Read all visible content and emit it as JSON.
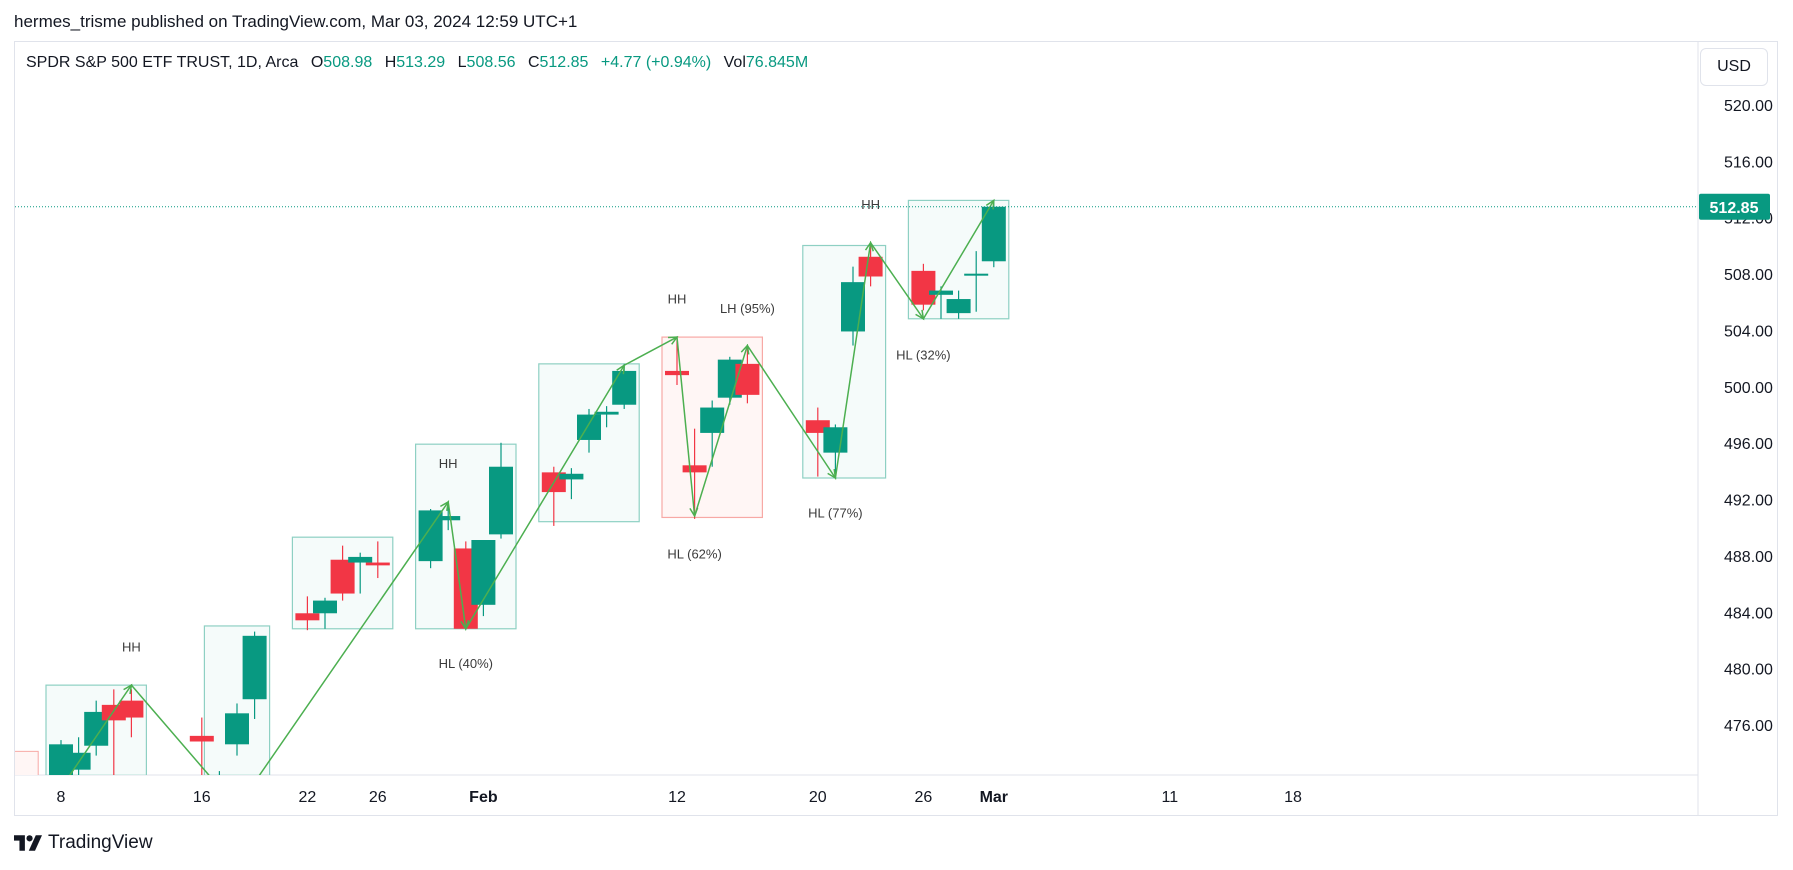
{
  "header": {
    "published_line": "hermes_trisme published on TradingView.com, Mar 03, 2024 12:59 UTC+1"
  },
  "legend": {
    "symbol": "SPDR S&P 500 ETF TRUST, 1D, Arca",
    "open_label": "O",
    "open": "508.98",
    "high_label": "H",
    "high": "513.29",
    "low_label": "L",
    "low": "508.56",
    "close_label": "C",
    "close": "512.85",
    "change": "+4.77 (+0.94%)",
    "vol_label": "Vol",
    "vol": "76.845M"
  },
  "currency_button": "USD",
  "footer": {
    "brand": "TradingView"
  },
  "colors": {
    "up": "#089981",
    "down": "#f23645",
    "zigzag": "#4caf50",
    "box_green_stroke": "#8ed0c3",
    "box_green_fill": "#f5fbfa",
    "box_red_stroke": "#f7a9a5",
    "box_red_fill": "#fff6f5",
    "price_line": "#089981",
    "grid_text": "#131722"
  },
  "chart_data": {
    "type": "candlestick",
    "title": "SPDR S&P 500 ETF TRUST, 1D, Arca",
    "y_axis": {
      "ticks": [
        476,
        480,
        484,
        488,
        492,
        496,
        500,
        504,
        508,
        512,
        516,
        520
      ],
      "tick_labels": [
        "476.00",
        "480.00",
        "484.00",
        "488.00",
        "492.00",
        "496.00",
        "500.00",
        "504.00",
        "508.00",
        "512.00",
        "516.00",
        "520.00"
      ],
      "range": [
        472.8,
        523.5
      ]
    },
    "x_axis": {
      "labels": [
        {
          "text": "8",
          "date": "2024-01-08"
        },
        {
          "text": "16",
          "date": "2024-01-16"
        },
        {
          "text": "22",
          "date": "2024-01-22"
        },
        {
          "text": "26",
          "date": "2024-01-26"
        },
        {
          "text": "Feb",
          "date": "2024-02-01",
          "bold": true
        },
        {
          "text": "12",
          "date": "2024-02-12"
        },
        {
          "text": "20",
          "date": "2024-02-20"
        },
        {
          "text": "26",
          "date": "2024-02-26"
        },
        {
          "text": "Mar",
          "date": "2024-03-01",
          "bold": true
        },
        {
          "text": "11",
          "date": "2024-03-11"
        },
        {
          "text": "18",
          "date": "2024-03-18"
        }
      ]
    },
    "candles": [
      {
        "date": "2024-01-08",
        "o": 472.5,
        "h": 475.0,
        "l": 472.0,
        "c": 474.7
      },
      {
        "date": "2024-01-09",
        "o": 472.9,
        "h": 475.2,
        "l": 471.9,
        "c": 474.1
      },
      {
        "date": "2024-01-10",
        "o": 474.6,
        "h": 477.8,
        "l": 473.9,
        "c": 477.0
      },
      {
        "date": "2024-01-11",
        "o": 477.5,
        "h": 478.6,
        "l": 472.3,
        "c": 476.4
      },
      {
        "date": "2024-01-12",
        "o": 477.8,
        "h": 478.6,
        "l": 475.2,
        "c": 476.6
      },
      {
        "date": "2024-01-16",
        "o": 475.3,
        "h": 476.6,
        "l": 472.2,
        "c": 474.9
      },
      {
        "date": "2024-01-17",
        "o": 471.8,
        "h": 472.8,
        "l": 469.9,
        "c": 472.3
      },
      {
        "date": "2024-01-18",
        "o": 474.7,
        "h": 477.6,
        "l": 473.9,
        "c": 476.9
      },
      {
        "date": "2024-01-19",
        "o": 477.9,
        "h": 482.7,
        "l": 476.5,
        "c": 482.4
      },
      {
        "date": "2024-01-22",
        "o": 484.0,
        "h": 485.2,
        "l": 482.8,
        "c": 483.5
      },
      {
        "date": "2024-01-23",
        "o": 484.0,
        "h": 485.1,
        "l": 482.9,
        "c": 484.9
      },
      {
        "date": "2024-01-24",
        "o": 487.8,
        "h": 488.8,
        "l": 484.9,
        "c": 485.4
      },
      {
        "date": "2024-01-25",
        "o": 487.6,
        "h": 488.3,
        "l": 485.4,
        "c": 488.0
      },
      {
        "date": "2024-01-26",
        "o": 487.6,
        "h": 489.1,
        "l": 486.5,
        "c": 487.4
      },
      {
        "date": "2024-01-29",
        "o": 487.7,
        "h": 491.4,
        "l": 487.2,
        "c": 491.3
      },
      {
        "date": "2024-01-30",
        "o": 490.6,
        "h": 491.6,
        "l": 489.9,
        "c": 490.9
      },
      {
        "date": "2024-01-31",
        "o": 488.6,
        "h": 489.1,
        "l": 482.9,
        "c": 482.9
      },
      {
        "date": "2024-02-01",
        "o": 484.6,
        "h": 489.2,
        "l": 483.8,
        "c": 489.2
      },
      {
        "date": "2024-02-02",
        "o": 489.6,
        "h": 496.1,
        "l": 489.3,
        "c": 494.4
      },
      {
        "date": "2024-02-05",
        "o": 494.0,
        "h": 494.4,
        "l": 490.2,
        "c": 492.6
      },
      {
        "date": "2024-02-06",
        "o": 493.5,
        "h": 494.3,
        "l": 492.1,
        "c": 493.9
      },
      {
        "date": "2024-02-07",
        "o": 496.3,
        "h": 498.5,
        "l": 495.4,
        "c": 498.1
      },
      {
        "date": "2024-02-08",
        "o": 498.1,
        "h": 498.7,
        "l": 497.2,
        "c": 498.3
      },
      {
        "date": "2024-02-09",
        "o": 498.8,
        "h": 501.7,
        "l": 498.5,
        "c": 501.2
      },
      {
        "date": "2024-02-12",
        "o": 501.2,
        "h": 503.5,
        "l": 500.2,
        "c": 500.9
      },
      {
        "date": "2024-02-13",
        "o": 494.5,
        "h": 497.1,
        "l": 490.7,
        "c": 494.0
      },
      {
        "date": "2024-02-14",
        "o": 496.8,
        "h": 499.1,
        "l": 494.4,
        "c": 498.6
      },
      {
        "date": "2024-02-15",
        "o": 499.3,
        "h": 502.2,
        "l": 498.8,
        "c": 502.0
      },
      {
        "date": "2024-02-16",
        "o": 501.7,
        "h": 502.9,
        "l": 498.9,
        "c": 499.5
      },
      {
        "date": "2024-02-20",
        "o": 497.7,
        "h": 498.6,
        "l": 493.7,
        "c": 496.8
      },
      {
        "date": "2024-02-21",
        "o": 495.4,
        "h": 497.4,
        "l": 493.6,
        "c": 497.2
      },
      {
        "date": "2024-02-22",
        "o": 504.0,
        "h": 508.6,
        "l": 503.0,
        "c": 507.5
      },
      {
        "date": "2024-02-23",
        "o": 509.3,
        "h": 510.1,
        "l": 507.2,
        "c": 507.9
      },
      {
        "date": "2024-02-26",
        "o": 508.3,
        "h": 508.8,
        "l": 505.5,
        "c": 505.9
      },
      {
        "date": "2024-02-27",
        "o": 506.6,
        "h": 507.2,
        "l": 504.9,
        "c": 506.9
      },
      {
        "date": "2024-02-28",
        "o": 505.3,
        "h": 506.9,
        "l": 504.9,
        "c": 506.3
      },
      {
        "date": "2024-02-29",
        "o": 508.1,
        "h": 509.7,
        "l": 505.4,
        "c": 508.1
      },
      {
        "date": "2024-03-01",
        "o": 508.98,
        "h": 513.29,
        "l": 508.56,
        "c": 512.85
      }
    ],
    "zigzag": [
      {
        "date": "2024-01-08",
        "price": 471.6
      },
      {
        "date": "2024-01-12",
        "price": 478.9
      },
      {
        "date": "2024-01-18",
        "price": 470.2
      },
      {
        "date": "2024-01-30",
        "price": 491.9
      },
      {
        "date": "2024-01-31",
        "price": 482.9
      },
      {
        "date": "2024-02-09",
        "price": 501.6
      },
      {
        "date": "2024-02-12",
        "price": 503.6
      },
      {
        "date": "2024-02-13",
        "price": 490.9
      },
      {
        "date": "2024-02-16",
        "price": 503.0
      },
      {
        "date": "2024-02-21",
        "price": 493.6
      },
      {
        "date": "2024-02-23",
        "price": 510.3
      },
      {
        "date": "2024-02-26",
        "price": 504.9
      },
      {
        "date": "2024-03-01",
        "price": 513.3
      }
    ],
    "boxes": [
      {
        "from": "2024-01-08",
        "to": "2024-01-12",
        "top": 478.9,
        "bottom": 472.5,
        "color": "green"
      },
      {
        "from": "2024-01-17",
        "to": "2024-01-19",
        "top": 483.1,
        "bottom": 472.5,
        "color": "green"
      },
      {
        "from": "2024-01-22",
        "to": "2024-01-26",
        "top": 489.4,
        "bottom": 482.9,
        "color": "green"
      },
      {
        "from": "2024-01-29",
        "to": "2024-02-02",
        "top": 496.0,
        "bottom": 482.9,
        "color": "green"
      },
      {
        "from": "2024-02-05",
        "to": "2024-02-09",
        "top": 501.7,
        "bottom": 490.5,
        "color": "green"
      },
      {
        "from": "2024-02-12",
        "to": "2024-02-16",
        "top": 503.6,
        "bottom": 490.8,
        "color": "red"
      },
      {
        "from": "2024-02-20",
        "to": "2024-02-23",
        "top": 510.1,
        "bottom": 493.6,
        "color": "green"
      },
      {
        "from": "2024-02-26",
        "to": "2024-03-01",
        "top": 513.3,
        "bottom": 504.9,
        "color": "green"
      }
    ],
    "labels": [
      {
        "text": "HH",
        "date": "2024-01-12",
        "price": 481.3
      },
      {
        "text": "HH",
        "date": "2024-01-30",
        "price": 494.3
      },
      {
        "text": "HL (40%)",
        "date": "2024-01-31",
        "price": 480.1
      },
      {
        "text": "HH",
        "date": "2024-02-12",
        "price": 506.0
      },
      {
        "text": "HL (62%)",
        "date": "2024-02-13",
        "price": 487.9
      },
      {
        "text": "LH (95%)",
        "date": "2024-02-16",
        "price": 505.3
      },
      {
        "text": "HL (77%)",
        "date": "2024-02-21",
        "price": 490.8
      },
      {
        "text": "HH",
        "date": "2024-02-23",
        "price": 512.7
      },
      {
        "text": "HL (32%)",
        "date": "2024-02-26",
        "price": 502.0
      }
    ],
    "last_price": {
      "label": "512.85",
      "value": 512.85
    },
    "stray_box_left": {
      "date": "2024-01-05",
      "top": 474.2
    }
  }
}
